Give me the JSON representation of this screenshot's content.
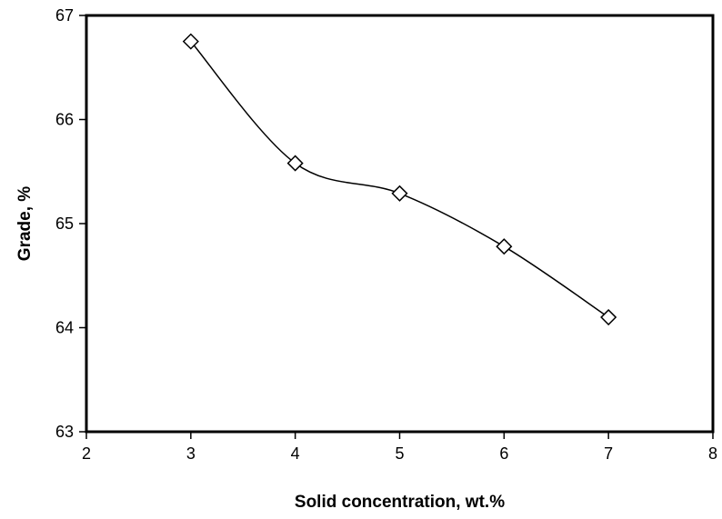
{
  "chart_data": {
    "type": "scatter",
    "title": "",
    "xlabel": "Solid concentration, wt.%",
    "ylabel": "Grade, %",
    "xlim": [
      2,
      8
    ],
    "ylim": [
      63,
      67
    ],
    "xticks": [
      "2",
      "3",
      "4",
      "5",
      "6",
      "7",
      "8"
    ],
    "yticks": [
      "63",
      "64",
      "65",
      "66",
      "67"
    ],
    "grid": false,
    "legend": "none",
    "line_style": "smoothed",
    "marker": "diamond-open",
    "series": [
      {
        "x": [
          3,
          4,
          5,
          6,
          7
        ],
        "y": [
          66.75,
          65.58,
          65.29,
          64.78,
          64.1
        ]
      }
    ],
    "colors": {
      "line": "#000000",
      "marker_fill": "#ffffff",
      "axis": "#000000"
    }
  }
}
